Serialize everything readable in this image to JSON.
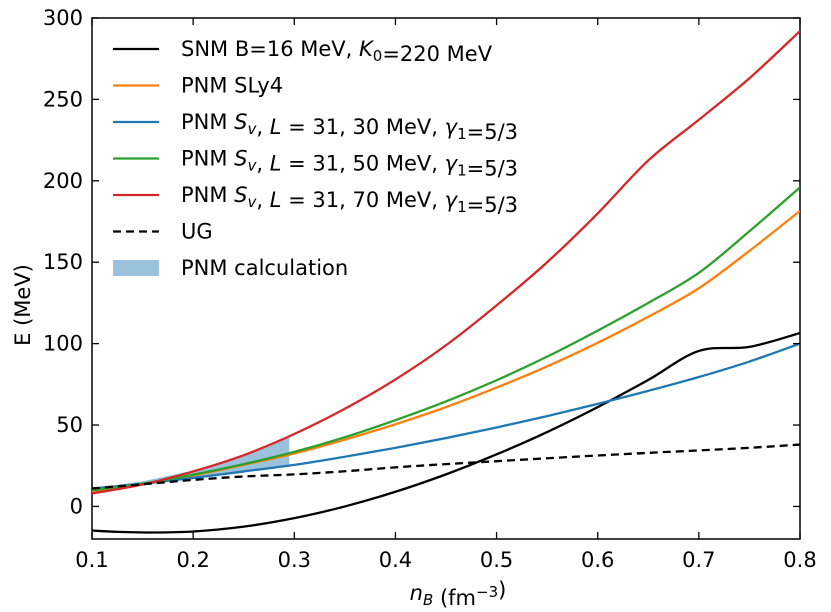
{
  "chart_data": {
    "type": "line",
    "title": "",
    "xlabel": {
      "base": "n",
      "sub": "B",
      "units_open": " (fm",
      "sup": "−3",
      "units_close": ")"
    },
    "ylabel": "E (MeV)",
    "xlim": [
      0.1,
      0.8
    ],
    "ylim": [
      -20,
      300
    ],
    "xticks": [
      0.1,
      0.2,
      0.3,
      0.4,
      0.5,
      0.6,
      0.7,
      0.8
    ],
    "xtick_labels": [
      "0.1",
      "0.2",
      "0.3",
      "0.4",
      "0.5",
      "0.6",
      "0.7",
      "0.8"
    ],
    "yticks": [
      0,
      50,
      100,
      150,
      200,
      250,
      300
    ],
    "ytick_labels": [
      "0",
      "50",
      "100",
      "150",
      "200",
      "250",
      "300"
    ],
    "legend_position": "top-left",
    "series": [
      {
        "name": "SNM B=16 MeV, K0=220 MeV",
        "legend": [
          {
            "t": "SNM B=16 MeV, "
          },
          {
            "t": "K",
            "it": true
          },
          {
            "t": "0",
            "sub": true
          },
          {
            "t": "=220 MeV"
          }
        ],
        "color": "#000000",
        "dash": "none",
        "x": [
          0.1,
          0.125,
          0.16,
          0.2,
          0.25,
          0.3,
          0.35,
          0.4,
          0.45,
          0.5,
          0.55,
          0.6,
          0.65,
          0.7,
          0.75,
          0.8
        ],
        "y": [
          -14.8,
          -15.6,
          -16.0,
          -15.4,
          -12.4,
          -7.2,
          0.0,
          9.0,
          19.7,
          32.0,
          45.7,
          61.0,
          77.7,
          95.5,
          98.0,
          106.5
        ]
      },
      {
        "name": "PNM SLy4",
        "legend": [
          {
            "t": "PNM SLy4"
          }
        ],
        "color": "#ff7f0e",
        "dash": "none",
        "x": [
          0.1,
          0.15,
          0.2,
          0.25,
          0.3,
          0.35,
          0.4,
          0.45,
          0.5,
          0.55,
          0.6,
          0.65,
          0.7,
          0.75,
          0.8
        ],
        "y": [
          9.0,
          13.5,
          19.0,
          25.5,
          32.5,
          41.0,
          50.5,
          61.0,
          73.0,
          86.0,
          100.5,
          116.5,
          134.0,
          157.0,
          181.5
        ]
      },
      {
        "name": "PNM Sv, L=31, 30 MeV, γ1=5/3",
        "legend": [
          {
            "t": "PNM "
          },
          {
            "t": "S",
            "it": true
          },
          {
            "t": "v",
            "it": true,
            "sub": true
          },
          {
            "t": ", "
          },
          {
            "t": "L",
            "it": true
          },
          {
            "t": " = 31, 30 MeV, "
          },
          {
            "t": "γ",
            "it": true
          },
          {
            "t": "1",
            "sub": true
          },
          {
            "t": "=5/3"
          }
        ],
        "color": "#1f77b4",
        "dash": "none",
        "x": [
          0.1,
          0.15,
          0.2,
          0.25,
          0.3,
          0.35,
          0.4,
          0.45,
          0.5,
          0.55,
          0.6,
          0.65,
          0.7,
          0.75,
          0.8
        ],
        "y": [
          11.0,
          14.0,
          17.5,
          21.5,
          25.5,
          30.5,
          36.0,
          42.0,
          48.5,
          55.5,
          63.0,
          71.0,
          79.5,
          89.0,
          100.0
        ]
      },
      {
        "name": "PNM Sv, L=31, 50 MeV, γ1=5/3",
        "legend": [
          {
            "t": "PNM "
          },
          {
            "t": "S",
            "it": true
          },
          {
            "t": "v",
            "it": true,
            "sub": true
          },
          {
            "t": ", "
          },
          {
            "t": "L",
            "it": true
          },
          {
            "t": " = 31, 50 MeV, "
          },
          {
            "t": "γ",
            "it": true
          },
          {
            "t": "1",
            "sub": true
          },
          {
            "t": "=5/3"
          }
        ],
        "color": "#2ca02c",
        "dash": "none",
        "x": [
          0.1,
          0.15,
          0.2,
          0.25,
          0.3,
          0.35,
          0.4,
          0.45,
          0.5,
          0.55,
          0.6,
          0.65,
          0.7,
          0.75,
          0.8
        ],
        "y": [
          10.0,
          14.0,
          19.5,
          26.0,
          33.5,
          42.5,
          53.0,
          64.5,
          77.5,
          92.0,
          108.0,
          125.0,
          143.5,
          169.0,
          196.0
        ]
      },
      {
        "name": "PNM Sv, L=31, 70 MeV, γ1=5/3",
        "legend": [
          {
            "t": "PNM "
          },
          {
            "t": "S",
            "it": true
          },
          {
            "t": "v",
            "it": true,
            "sub": true
          },
          {
            "t": ", "
          },
          {
            "t": "L",
            "it": true
          },
          {
            "t": " = 31, 70 MeV, "
          },
          {
            "t": "γ",
            "it": true
          },
          {
            "t": "1",
            "sub": true
          },
          {
            "t": "=5/3"
          }
        ],
        "color": "#d62728",
        "dash": "none",
        "x": [
          0.1,
          0.15,
          0.2,
          0.25,
          0.3,
          0.35,
          0.4,
          0.45,
          0.5,
          0.55,
          0.6,
          0.65,
          0.7,
          0.75,
          0.8
        ],
        "y": [
          8.0,
          13.5,
          21.5,
          31.5,
          44.5,
          60.0,
          78.0,
          99.0,
          123.5,
          150.0,
          180.0,
          212.5,
          237.5,
          263.0,
          292.0
        ]
      },
      {
        "name": "UG",
        "legend": [
          {
            "t": "UG"
          }
        ],
        "color": "#000000",
        "dash": "8,5",
        "x": [
          0.1,
          0.15,
          0.2,
          0.25,
          0.3,
          0.35,
          0.4,
          0.45,
          0.5,
          0.55,
          0.6,
          0.65,
          0.7,
          0.75,
          0.8
        ],
        "y": [
          11.0,
          13.6,
          16.3,
          18.4,
          19.7,
          21.6,
          24.0,
          26.0,
          27.8,
          29.6,
          31.3,
          32.9,
          34.4,
          36.0,
          38.0
        ]
      }
    ],
    "band": {
      "name": "PNM calculation",
      "legend": [
        {
          "t": "PNM calculation"
        }
      ],
      "color": "#1f77b4",
      "opacity": 0.45,
      "x": [
        0.1,
        0.15,
        0.2,
        0.25,
        0.295
      ],
      "y_low": [
        9.0,
        13.0,
        17.5,
        22.0,
        25.5
      ],
      "y_high": [
        11.0,
        15.5,
        22.0,
        31.0,
        43.0
      ]
    }
  }
}
